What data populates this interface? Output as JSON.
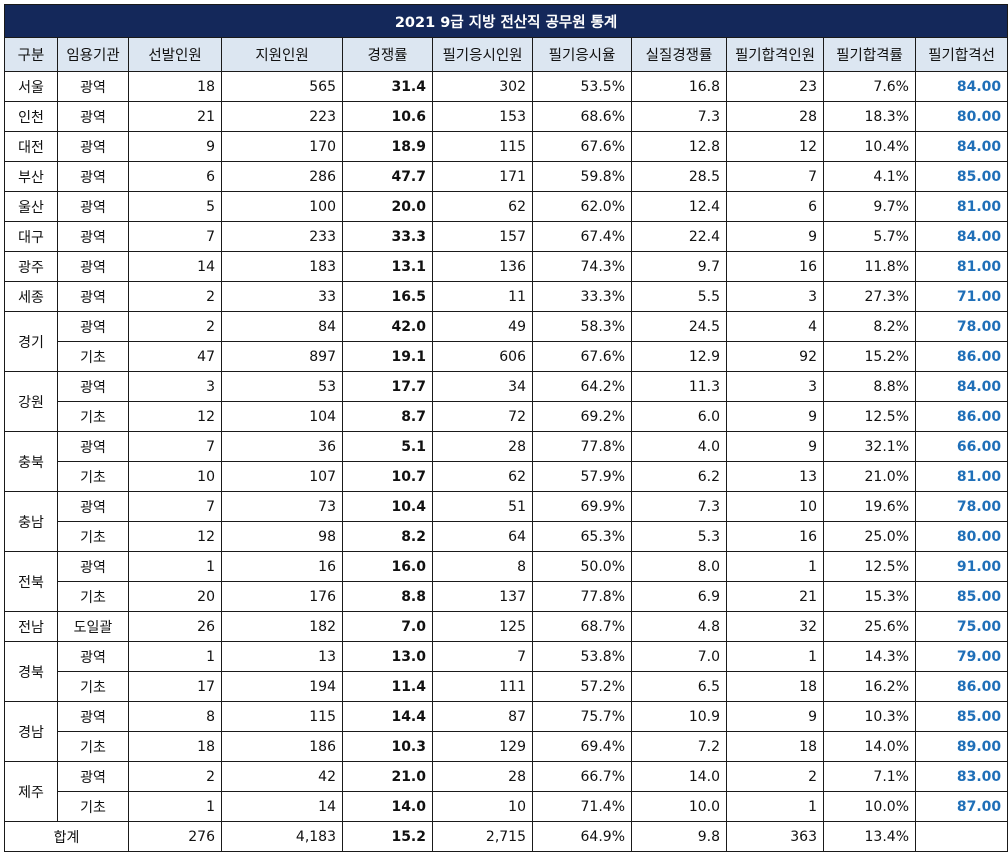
{
  "title": "2021 9급 지방 전산직 공무원 통계",
  "headers": [
    "구분",
    "임용기관",
    "선발인원",
    "지원인원",
    "경쟁률",
    "필기응시인원",
    "필기응시율",
    "실질경쟁률",
    "필기합격인원",
    "필기합격률",
    "필기합격선"
  ],
  "rows": [
    {
      "region": "서울",
      "agency": "광역",
      "selected": "18",
      "applicants": "565",
      "competition": "31.4",
      "exam_takers": "302",
      "exam_rate": "53.5%",
      "real_competition": "16.8",
      "passers": "23",
      "pass_rate": "7.6%",
      "cutoff": "84.00"
    },
    {
      "region": "인천",
      "agency": "광역",
      "selected": "21",
      "applicants": "223",
      "competition": "10.6",
      "exam_takers": "153",
      "exam_rate": "68.6%",
      "real_competition": "7.3",
      "passers": "28",
      "pass_rate": "18.3%",
      "cutoff": "80.00"
    },
    {
      "region": "대전",
      "agency": "광역",
      "selected": "9",
      "applicants": "170",
      "competition": "18.9",
      "exam_takers": "115",
      "exam_rate": "67.6%",
      "real_competition": "12.8",
      "passers": "12",
      "pass_rate": "10.4%",
      "cutoff": "84.00"
    },
    {
      "region": "부산",
      "agency": "광역",
      "selected": "6",
      "applicants": "286",
      "competition": "47.7",
      "exam_takers": "171",
      "exam_rate": "59.8%",
      "real_competition": "28.5",
      "passers": "7",
      "pass_rate": "4.1%",
      "cutoff": "85.00"
    },
    {
      "region": "울산",
      "agency": "광역",
      "selected": "5",
      "applicants": "100",
      "competition": "20.0",
      "exam_takers": "62",
      "exam_rate": "62.0%",
      "real_competition": "12.4",
      "passers": "6",
      "pass_rate": "9.7%",
      "cutoff": "81.00"
    },
    {
      "region": "대구",
      "agency": "광역",
      "selected": "7",
      "applicants": "233",
      "competition": "33.3",
      "exam_takers": "157",
      "exam_rate": "67.4%",
      "real_competition": "22.4",
      "passers": "9",
      "pass_rate": "5.7%",
      "cutoff": "84.00"
    },
    {
      "region": "광주",
      "agency": "광역",
      "selected": "14",
      "applicants": "183",
      "competition": "13.1",
      "exam_takers": "136",
      "exam_rate": "74.3%",
      "real_competition": "9.7",
      "passers": "16",
      "pass_rate": "11.8%",
      "cutoff": "81.00"
    },
    {
      "region": "세종",
      "agency": "광역",
      "selected": "2",
      "applicants": "33",
      "competition": "16.5",
      "exam_takers": "11",
      "exam_rate": "33.3%",
      "real_competition": "5.5",
      "passers": "3",
      "pass_rate": "27.3%",
      "cutoff": "71.00"
    },
    {
      "region": "경기",
      "agency": "광역",
      "selected": "2",
      "applicants": "84",
      "competition": "42.0",
      "exam_takers": "49",
      "exam_rate": "58.3%",
      "real_competition": "24.5",
      "passers": "4",
      "pass_rate": "8.2%",
      "cutoff": "78.00"
    },
    {
      "region": "경기",
      "agency": "기초",
      "selected": "47",
      "applicants": "897",
      "competition": "19.1",
      "exam_takers": "606",
      "exam_rate": "67.6%",
      "real_competition": "12.9",
      "passers": "92",
      "pass_rate": "15.2%",
      "cutoff": "86.00"
    },
    {
      "region": "강원",
      "agency": "광역",
      "selected": "3",
      "applicants": "53",
      "competition": "17.7",
      "exam_takers": "34",
      "exam_rate": "64.2%",
      "real_competition": "11.3",
      "passers": "3",
      "pass_rate": "8.8%",
      "cutoff": "84.00"
    },
    {
      "region": "강원",
      "agency": "기초",
      "selected": "12",
      "applicants": "104",
      "competition": "8.7",
      "exam_takers": "72",
      "exam_rate": "69.2%",
      "real_competition": "6.0",
      "passers": "9",
      "pass_rate": "12.5%",
      "cutoff": "86.00"
    },
    {
      "region": "충북",
      "agency": "광역",
      "selected": "7",
      "applicants": "36",
      "competition": "5.1",
      "exam_takers": "28",
      "exam_rate": "77.8%",
      "real_competition": "4.0",
      "passers": "9",
      "pass_rate": "32.1%",
      "cutoff": "66.00"
    },
    {
      "region": "충북",
      "agency": "기초",
      "selected": "10",
      "applicants": "107",
      "competition": "10.7",
      "exam_takers": "62",
      "exam_rate": "57.9%",
      "real_competition": "6.2",
      "passers": "13",
      "pass_rate": "21.0%",
      "cutoff": "81.00"
    },
    {
      "region": "충남",
      "agency": "광역",
      "selected": "7",
      "applicants": "73",
      "competition": "10.4",
      "exam_takers": "51",
      "exam_rate": "69.9%",
      "real_competition": "7.3",
      "passers": "10",
      "pass_rate": "19.6%",
      "cutoff": "78.00"
    },
    {
      "region": "충남",
      "agency": "기초",
      "selected": "12",
      "applicants": "98",
      "competition": "8.2",
      "exam_takers": "64",
      "exam_rate": "65.3%",
      "real_competition": "5.3",
      "passers": "16",
      "pass_rate": "25.0%",
      "cutoff": "80.00"
    },
    {
      "region": "전북",
      "agency": "광역",
      "selected": "1",
      "applicants": "16",
      "competition": "16.0",
      "exam_takers": "8",
      "exam_rate": "50.0%",
      "real_competition": "8.0",
      "passers": "1",
      "pass_rate": "12.5%",
      "cutoff": "91.00"
    },
    {
      "region": "전북",
      "agency": "기초",
      "selected": "20",
      "applicants": "176",
      "competition": "8.8",
      "exam_takers": "137",
      "exam_rate": "77.8%",
      "real_competition": "6.9",
      "passers": "21",
      "pass_rate": "15.3%",
      "cutoff": "85.00"
    },
    {
      "region": "전남",
      "agency": "도일괄",
      "selected": "26",
      "applicants": "182",
      "competition": "7.0",
      "exam_takers": "125",
      "exam_rate": "68.7%",
      "real_competition": "4.8",
      "passers": "32",
      "pass_rate": "25.6%",
      "cutoff": "75.00"
    },
    {
      "region": "경북",
      "agency": "광역",
      "selected": "1",
      "applicants": "13",
      "competition": "13.0",
      "exam_takers": "7",
      "exam_rate": "53.8%",
      "real_competition": "7.0",
      "passers": "1",
      "pass_rate": "14.3%",
      "cutoff": "79.00"
    },
    {
      "region": "경북",
      "agency": "기초",
      "selected": "17",
      "applicants": "194",
      "competition": "11.4",
      "exam_takers": "111",
      "exam_rate": "57.2%",
      "real_competition": "6.5",
      "passers": "18",
      "pass_rate": "16.2%",
      "cutoff": "86.00"
    },
    {
      "region": "경남",
      "agency": "광역",
      "selected": "8",
      "applicants": "115",
      "competition": "14.4",
      "exam_takers": "87",
      "exam_rate": "75.7%",
      "real_competition": "10.9",
      "passers": "9",
      "pass_rate": "10.3%",
      "cutoff": "85.00"
    },
    {
      "region": "경남",
      "agency": "기초",
      "selected": "18",
      "applicants": "186",
      "competition": "10.3",
      "exam_takers": "129",
      "exam_rate": "69.4%",
      "real_competition": "7.2",
      "passers": "18",
      "pass_rate": "14.0%",
      "cutoff": "89.00"
    },
    {
      "region": "제주",
      "agency": "광역",
      "selected": "2",
      "applicants": "42",
      "competition": "21.0",
      "exam_takers": "28",
      "exam_rate": "66.7%",
      "real_competition": "14.0",
      "passers": "2",
      "pass_rate": "7.1%",
      "cutoff": "83.00"
    },
    {
      "region": "제주",
      "agency": "기초",
      "selected": "1",
      "applicants": "14",
      "competition": "14.0",
      "exam_takers": "10",
      "exam_rate": "71.4%",
      "real_competition": "10.0",
      "passers": "1",
      "pass_rate": "10.0%",
      "cutoff": "87.00"
    }
  ],
  "total": {
    "label": "합계",
    "selected": "276",
    "applicants": "4,183",
    "competition": "15.2",
    "exam_takers": "2,715",
    "exam_rate": "64.9%",
    "real_competition": "9.8",
    "passers": "363",
    "pass_rate": "13.4%",
    "cutoff": ""
  },
  "colors": {
    "title_bg": "#14285a",
    "header_bg": "#dce6f1",
    "cutoff_text": "#1f6fb8"
  }
}
